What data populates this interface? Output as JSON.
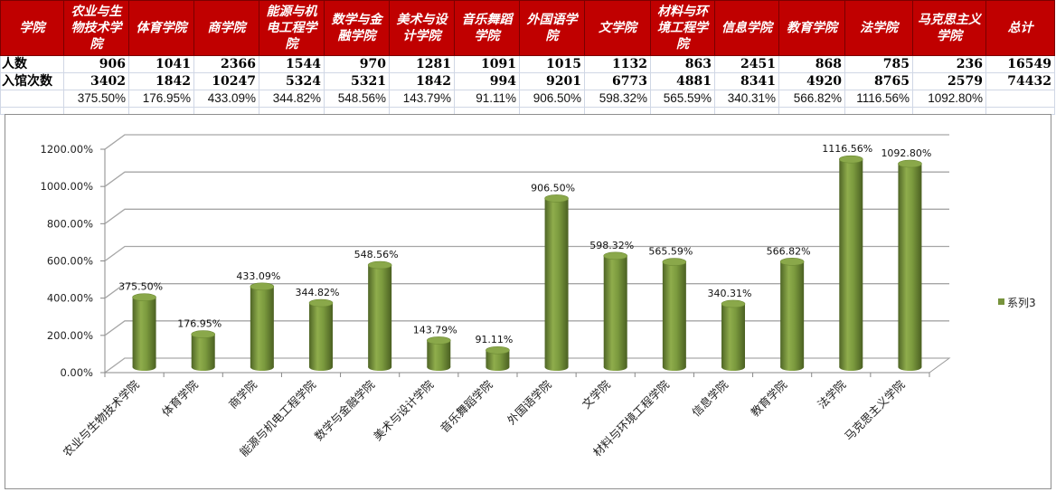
{
  "table": {
    "header_label": "学院",
    "colleges": [
      "农业与生物技术学院",
      "体育学院",
      "商学院",
      "能源与机电工程学院",
      "数学与金融学院",
      "美术与设计学院",
      "音乐舞蹈学院",
      "外国语学院",
      "文学院",
      "材料与环境工程学院",
      "信息学院",
      "教育学院",
      "法学院",
      "马克思主义学院"
    ],
    "total_label": "总计",
    "rows": [
      {
        "label": "人数",
        "values": [
          "906",
          "1041",
          "2366",
          "1544",
          "970",
          "1281",
          "1091",
          "1015",
          "1132",
          "863",
          "2451",
          "868",
          "785",
          "236"
        ],
        "total": "16549"
      },
      {
        "label": "入馆次数",
        "values": [
          "3402",
          "1842",
          "10247",
          "5324",
          "5321",
          "1842",
          "994",
          "9201",
          "6773",
          "4881",
          "8341",
          "4920",
          "8765",
          "2579"
        ],
        "total": "74432"
      }
    ],
    "ratios": [
      "375.50%",
      "176.95%",
      "433.09%",
      "344.82%",
      "548.56%",
      "143.79%",
      "91.11%",
      "906.50%",
      "598.32%",
      "565.59%",
      "340.31%",
      "566.82%",
      "1116.56%",
      "1092.80%"
    ]
  },
  "colors": {
    "header_bg": "#c00000",
    "bar": "#77933c"
  },
  "chart_data": {
    "type": "bar",
    "style": "3d-cylinder",
    "categories": [
      "农业与生物技术学院",
      "体育学院",
      "商学院",
      "能源与机电工程学院",
      "数学与金融学院",
      "美术与设计学院",
      "音乐舞蹈学院",
      "外国语学院",
      "文学院",
      "材料与环境工程学院",
      "信息学院",
      "教育学院",
      "法学院",
      "马克思主义学院"
    ],
    "series": [
      {
        "name": "系列3",
        "values": [
          375.5,
          176.95,
          433.09,
          344.82,
          548.56,
          143.79,
          91.11,
          906.5,
          598.32,
          565.59,
          340.31,
          566.82,
          1116.56,
          1092.8
        ]
      }
    ],
    "data_labels": [
      "375.50%",
      "176.95%",
      "433.09%",
      "344.82%",
      "548.56%",
      "143.79%",
      "91.11%",
      "906.50%",
      "598.32%",
      "565.59%",
      "340.31%",
      "566.82%",
      "1116.56%",
      "1092.80%"
    ],
    "yticks": [
      "0.00%",
      "200.00%",
      "400.00%",
      "600.00%",
      "800.00%",
      "1000.00%",
      "1200.00%"
    ],
    "ylim": [
      0,
      1200
    ],
    "grid": true,
    "legend": "right"
  }
}
